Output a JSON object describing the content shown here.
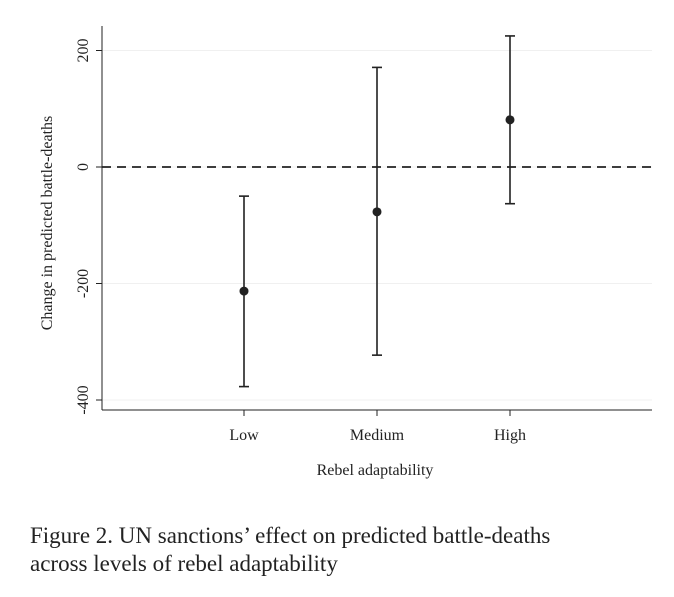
{
  "chart_data": {
    "type": "scatter",
    "title": "",
    "xlabel": "Rebel adaptability",
    "ylabel": "Change in predicted battle-deaths",
    "categories": [
      "Low",
      "Medium",
      "High"
    ],
    "series": [
      {
        "values": [
          -213,
          -77,
          81
        ],
        "lower": [
          -377,
          -323,
          -63
        ],
        "upper": [
          -50,
          171,
          225
        ]
      }
    ],
    "ylim": [
      -400,
      240
    ],
    "yticks": [
      -400,
      -200,
      0,
      200
    ],
    "ytick_labels": [
      "-400",
      "-200",
      "0",
      "200"
    ],
    "reference_line": {
      "y": 0,
      "style": "dashed"
    },
    "grid": true
  },
  "caption": {
    "line1": "Figure 2. UN sanctions’ effect on predicted battle-deaths",
    "line2": "across levels of rebel adaptability"
  }
}
